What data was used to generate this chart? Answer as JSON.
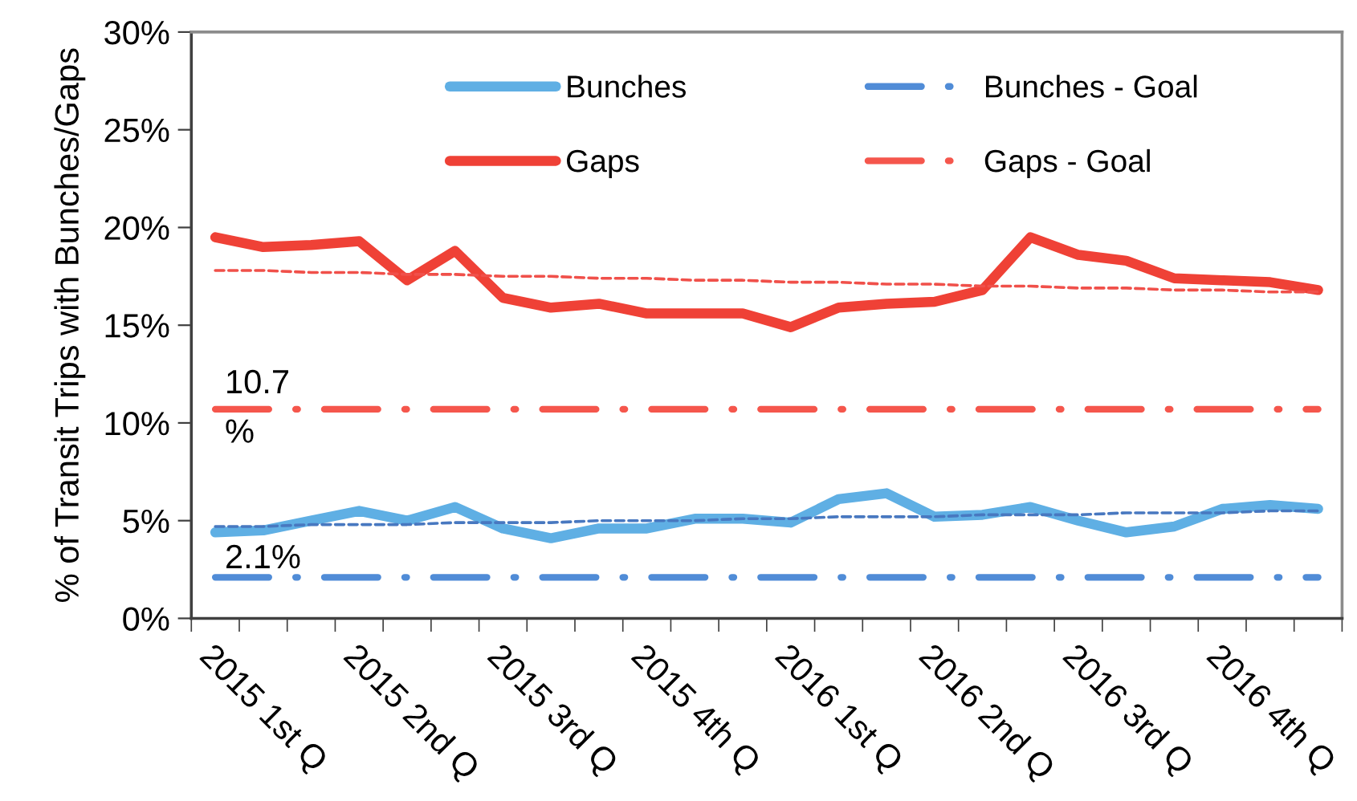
{
  "chart_data": {
    "type": "line",
    "ylabel": "% of Transit Trips with Bunches/Gaps",
    "categories": [
      "2015 1st Q",
      null,
      null,
      "2015 2nd Q",
      null,
      null,
      "2015 3rd Q",
      null,
      null,
      "2015 4th Q",
      null,
      null,
      "2016 1st Q",
      null,
      null,
      "2016 2nd Q",
      null,
      null,
      "2016 3rd Q",
      null,
      null,
      "2016 4th Q",
      null,
      null
    ],
    "series": [
      {
        "name": "Bunches",
        "color": "#5fafe4",
        "line_style": "solid",
        "values": [
          4.4,
          4.5,
          5.0,
          5.5,
          5.0,
          5.7,
          4.6,
          4.1,
          4.6,
          4.6,
          5.1,
          5.1,
          4.9,
          6.1,
          6.4,
          5.2,
          5.3,
          5.7,
          5.0,
          4.4,
          4.7,
          5.6,
          5.8,
          5.6
        ]
      },
      {
        "name": "Gaps",
        "color": "#ef4136",
        "line_style": "solid",
        "values": [
          19.5,
          19.0,
          19.1,
          19.3,
          17.3,
          18.8,
          16.4,
          15.9,
          16.1,
          15.6,
          15.6,
          15.6,
          14.9,
          15.9,
          16.1,
          16.2,
          16.8,
          19.5,
          18.6,
          18.3,
          17.4,
          17.3,
          17.2,
          16.8
        ]
      },
      {
        "name": "Bunches - Goal",
        "color": "#508cd7",
        "line_style": "dashdot",
        "values": [
          2.1,
          2.1,
          2.1,
          2.1,
          2.1,
          2.1,
          2.1,
          2.1,
          2.1,
          2.1,
          2.1,
          2.1,
          2.1,
          2.1,
          2.1,
          2.1,
          2.1,
          2.1,
          2.1,
          2.1,
          2.1,
          2.1,
          2.1,
          2.1
        ]
      },
      {
        "name": "Gaps - Goal",
        "color": "#f5564c",
        "line_style": "dashdot",
        "values": [
          10.7,
          10.7,
          10.7,
          10.7,
          10.7,
          10.7,
          10.7,
          10.7,
          10.7,
          10.7,
          10.7,
          10.7,
          10.7,
          10.7,
          10.7,
          10.7,
          10.7,
          10.7,
          10.7,
          10.7,
          10.7,
          10.7,
          10.7,
          10.7
        ]
      },
      {
        "color": "#4878c0",
        "line_style": "dashed",
        "values": [
          4.7,
          4.7,
          4.8,
          4.8,
          4.8,
          4.9,
          4.9,
          4.9,
          5.0,
          5.0,
          5.0,
          5.1,
          5.1,
          5.2,
          5.2,
          5.2,
          5.3,
          5.3,
          5.3,
          5.4,
          5.4,
          5.4,
          5.5,
          5.5
        ]
      },
      {
        "color": "#f0504a",
        "line_style": "dashed",
        "values": [
          17.8,
          17.8,
          17.7,
          17.7,
          17.6,
          17.6,
          17.5,
          17.5,
          17.4,
          17.4,
          17.3,
          17.3,
          17.2,
          17.2,
          17.1,
          17.1,
          17.0,
          17.0,
          16.9,
          16.9,
          16.8,
          16.8,
          16.7,
          16.7
        ]
      }
    ],
    "ylim": [
      0,
      30
    ],
    "yticks": [
      {
        "value": 0,
        "label": "0%"
      },
      {
        "value": 5,
        "label": "5%"
      },
      {
        "value": 10,
        "label": "10%"
      },
      {
        "value": 15,
        "label": "15%"
      },
      {
        "value": 20,
        "label": "20%"
      },
      {
        "value": 25,
        "label": "25%"
      },
      {
        "value": 30,
        "label": "30%"
      }
    ],
    "legend": "top",
    "annotations": [
      {
        "text": "10.7\n%",
        "y": 10.7
      },
      {
        "text": "2.1%",
        "y": 2.1
      }
    ]
  }
}
